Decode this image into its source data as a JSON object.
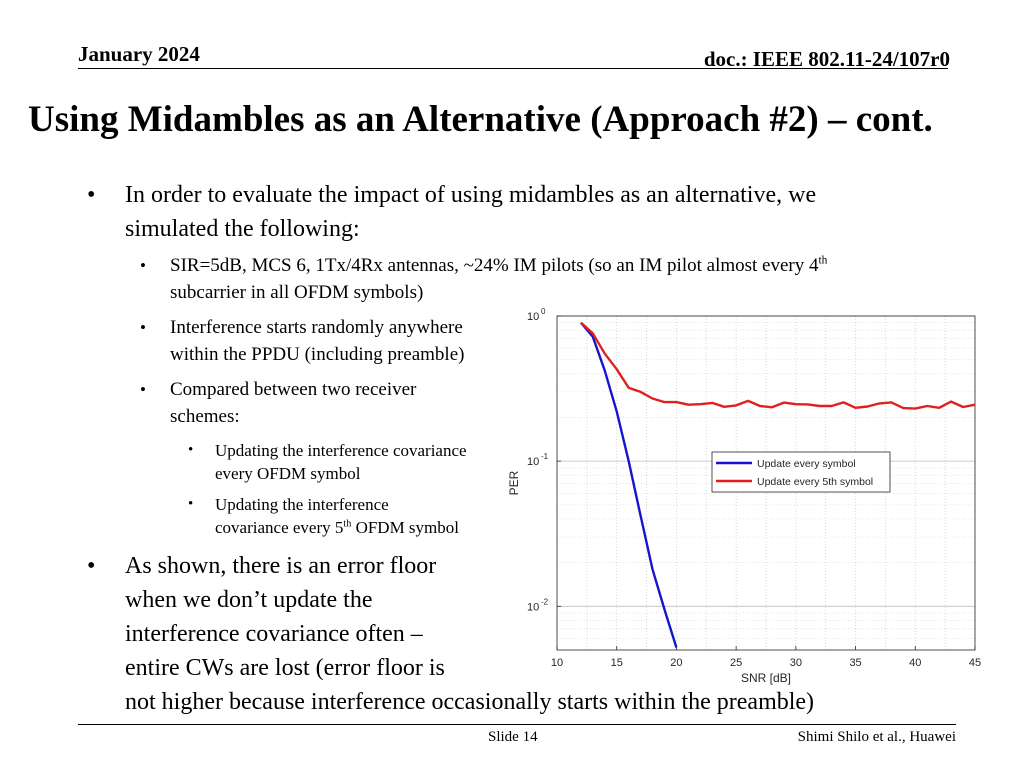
{
  "header": {
    "date": "January 2024",
    "doc": "doc.: IEEE 802.11-24/107r0"
  },
  "title": "Using Midambles as an Alternative (Approach #2) – cont.",
  "bullets": {
    "b1_line1": "In order to evaluate the impact of using midambles as an alternative, we",
    "b1_line2": "simulated the following:",
    "s1_line1_pre": "SIR=5dB, MCS 6, 1Tx/4Rx antennas, ~24% IM pilots (so an IM pilot almost every 4",
    "s1_line1_sup": "th",
    "s1_line2": "subcarrier in all OFDM symbols)",
    "s2_line1": "Interference starts randomly anywhere",
    "s2_line2": "within the PPDU (including preamble)",
    "s3_line1": "Compared between two receiver",
    "s3_line2": "schemes:",
    "ss1_line1": "Updating the interference covariance",
    "ss1_line2": "every OFDM symbol",
    "ss2_line1": "Updating the interference",
    "ss2_line2_pre": "covariance every 5",
    "ss2_line2_sup": "th",
    "ss2_line2_post": " OFDM symbol",
    "b2_line1": "As shown, there is an error floor",
    "b2_line2": "when we don’t update the",
    "b2_line3": "interference covariance often –",
    "b2_line4": "entire CWs are lost (error floor is",
    "b2_line5": "not higher because interference occasionally starts within the preamble)"
  },
  "footer": {
    "slide": "Slide 14",
    "author": "Shimi Shilo et al., Huawei"
  },
  "chart_data": {
    "type": "line",
    "title": "",
    "xlabel": "SNR [dB]",
    "ylabel": "PER",
    "xlim": [
      10,
      45
    ],
    "ylim": [
      0.005,
      1
    ],
    "yscale": "log",
    "grid": true,
    "legend_position": "right-middle",
    "xticks": [
      "10",
      "15",
      "20",
      "25",
      "30",
      "35",
      "40",
      "45"
    ],
    "yticks": [
      {
        "base": "10",
        "exp": "0"
      },
      {
        "base": "10",
        "exp": "-1"
      },
      {
        "base": "10",
        "exp": "-2"
      }
    ],
    "series": [
      {
        "name": "Update every symbol",
        "color": "#1515d0",
        "x": [
          12,
          13,
          14,
          15,
          16,
          17,
          18,
          19,
          20
        ],
        "y": [
          0.9,
          0.72,
          0.42,
          0.22,
          0.1,
          0.042,
          0.018,
          0.0095,
          0.0052
        ]
      },
      {
        "name": "Update every 5th symbol",
        "color": "#e02020",
        "x": [
          12,
          13,
          14,
          15,
          16,
          17,
          18,
          19,
          20,
          21,
          22,
          23,
          24,
          25,
          26,
          27,
          28,
          29,
          30,
          31,
          32,
          33,
          34,
          35,
          36,
          37,
          38,
          39,
          40,
          41,
          42,
          43,
          44,
          45
        ],
        "y": [
          0.9,
          0.76,
          0.55,
          0.43,
          0.32,
          0.3,
          0.27,
          0.255,
          0.255,
          0.245,
          0.247,
          0.252,
          0.237,
          0.242,
          0.26,
          0.24,
          0.235,
          0.253,
          0.247,
          0.246,
          0.24,
          0.24,
          0.254,
          0.233,
          0.238,
          0.25,
          0.254,
          0.232,
          0.23,
          0.24,
          0.233,
          0.257,
          0.236,
          0.245
        ]
      }
    ]
  }
}
